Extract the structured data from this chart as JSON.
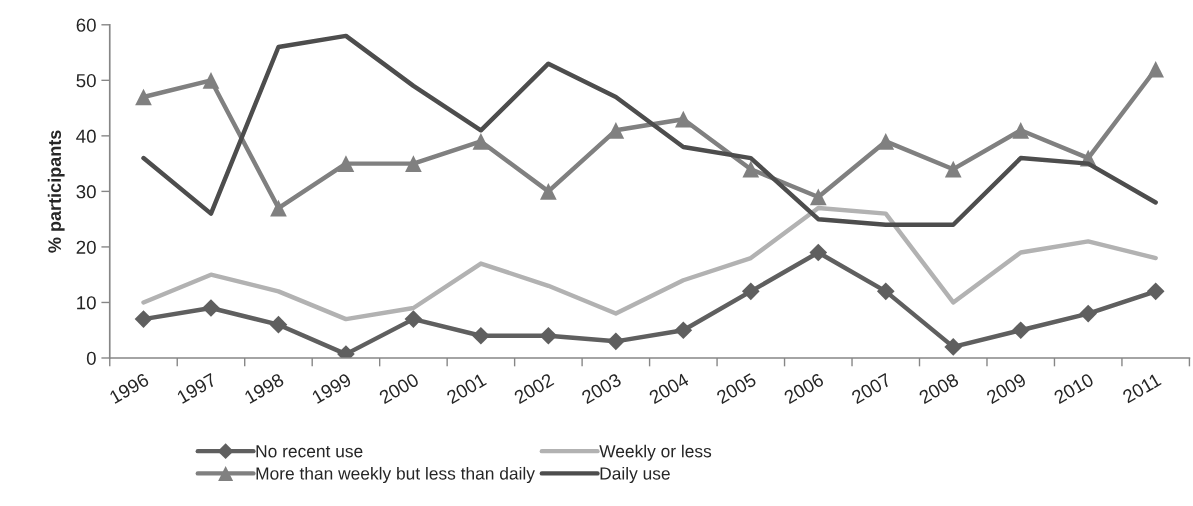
{
  "chart_data": {
    "type": "line",
    "ylabel": "% participants",
    "categories": [
      "1996",
      "1997",
      "1998",
      "1999",
      "2000",
      "2001",
      "2002",
      "2003",
      "2004",
      "2005",
      "2006",
      "2007",
      "2008",
      "2009",
      "2010",
      "2011"
    ],
    "series": [
      {
        "name": "No recent use",
        "color": "#5f5f5f",
        "marker": "diamond",
        "values": [
          7,
          9,
          6,
          0.7,
          7,
          4,
          4,
          3,
          5,
          12,
          19,
          12,
          2,
          5,
          8,
          12
        ]
      },
      {
        "name": "Weekly or less",
        "color": "#b2b2b2",
        "marker": "none",
        "values": [
          10,
          15,
          12,
          7,
          9,
          17,
          13,
          8,
          14,
          18,
          27,
          26,
          10,
          19,
          21,
          18
        ]
      },
      {
        "name": "More than weekly but less than daily",
        "color": "#808080",
        "marker": "triangle",
        "values": [
          47,
          50,
          27,
          35,
          35,
          39,
          30,
          41,
          43,
          34,
          29,
          39,
          34,
          41,
          36,
          52
        ]
      },
      {
        "name": "Daily use",
        "color": "#4d4d4d",
        "marker": "none",
        "values": [
          36,
          26,
          56,
          58,
          49,
          41,
          53,
          47,
          38,
          36,
          25,
          24,
          24,
          36,
          35,
          28
        ]
      }
    ],
    "ylim": [
      0,
      60
    ],
    "yticks": [
      0,
      10,
      20,
      30,
      40,
      50,
      60
    ],
    "grid": false,
    "legend": "bottom",
    "line_style": "solid"
  }
}
